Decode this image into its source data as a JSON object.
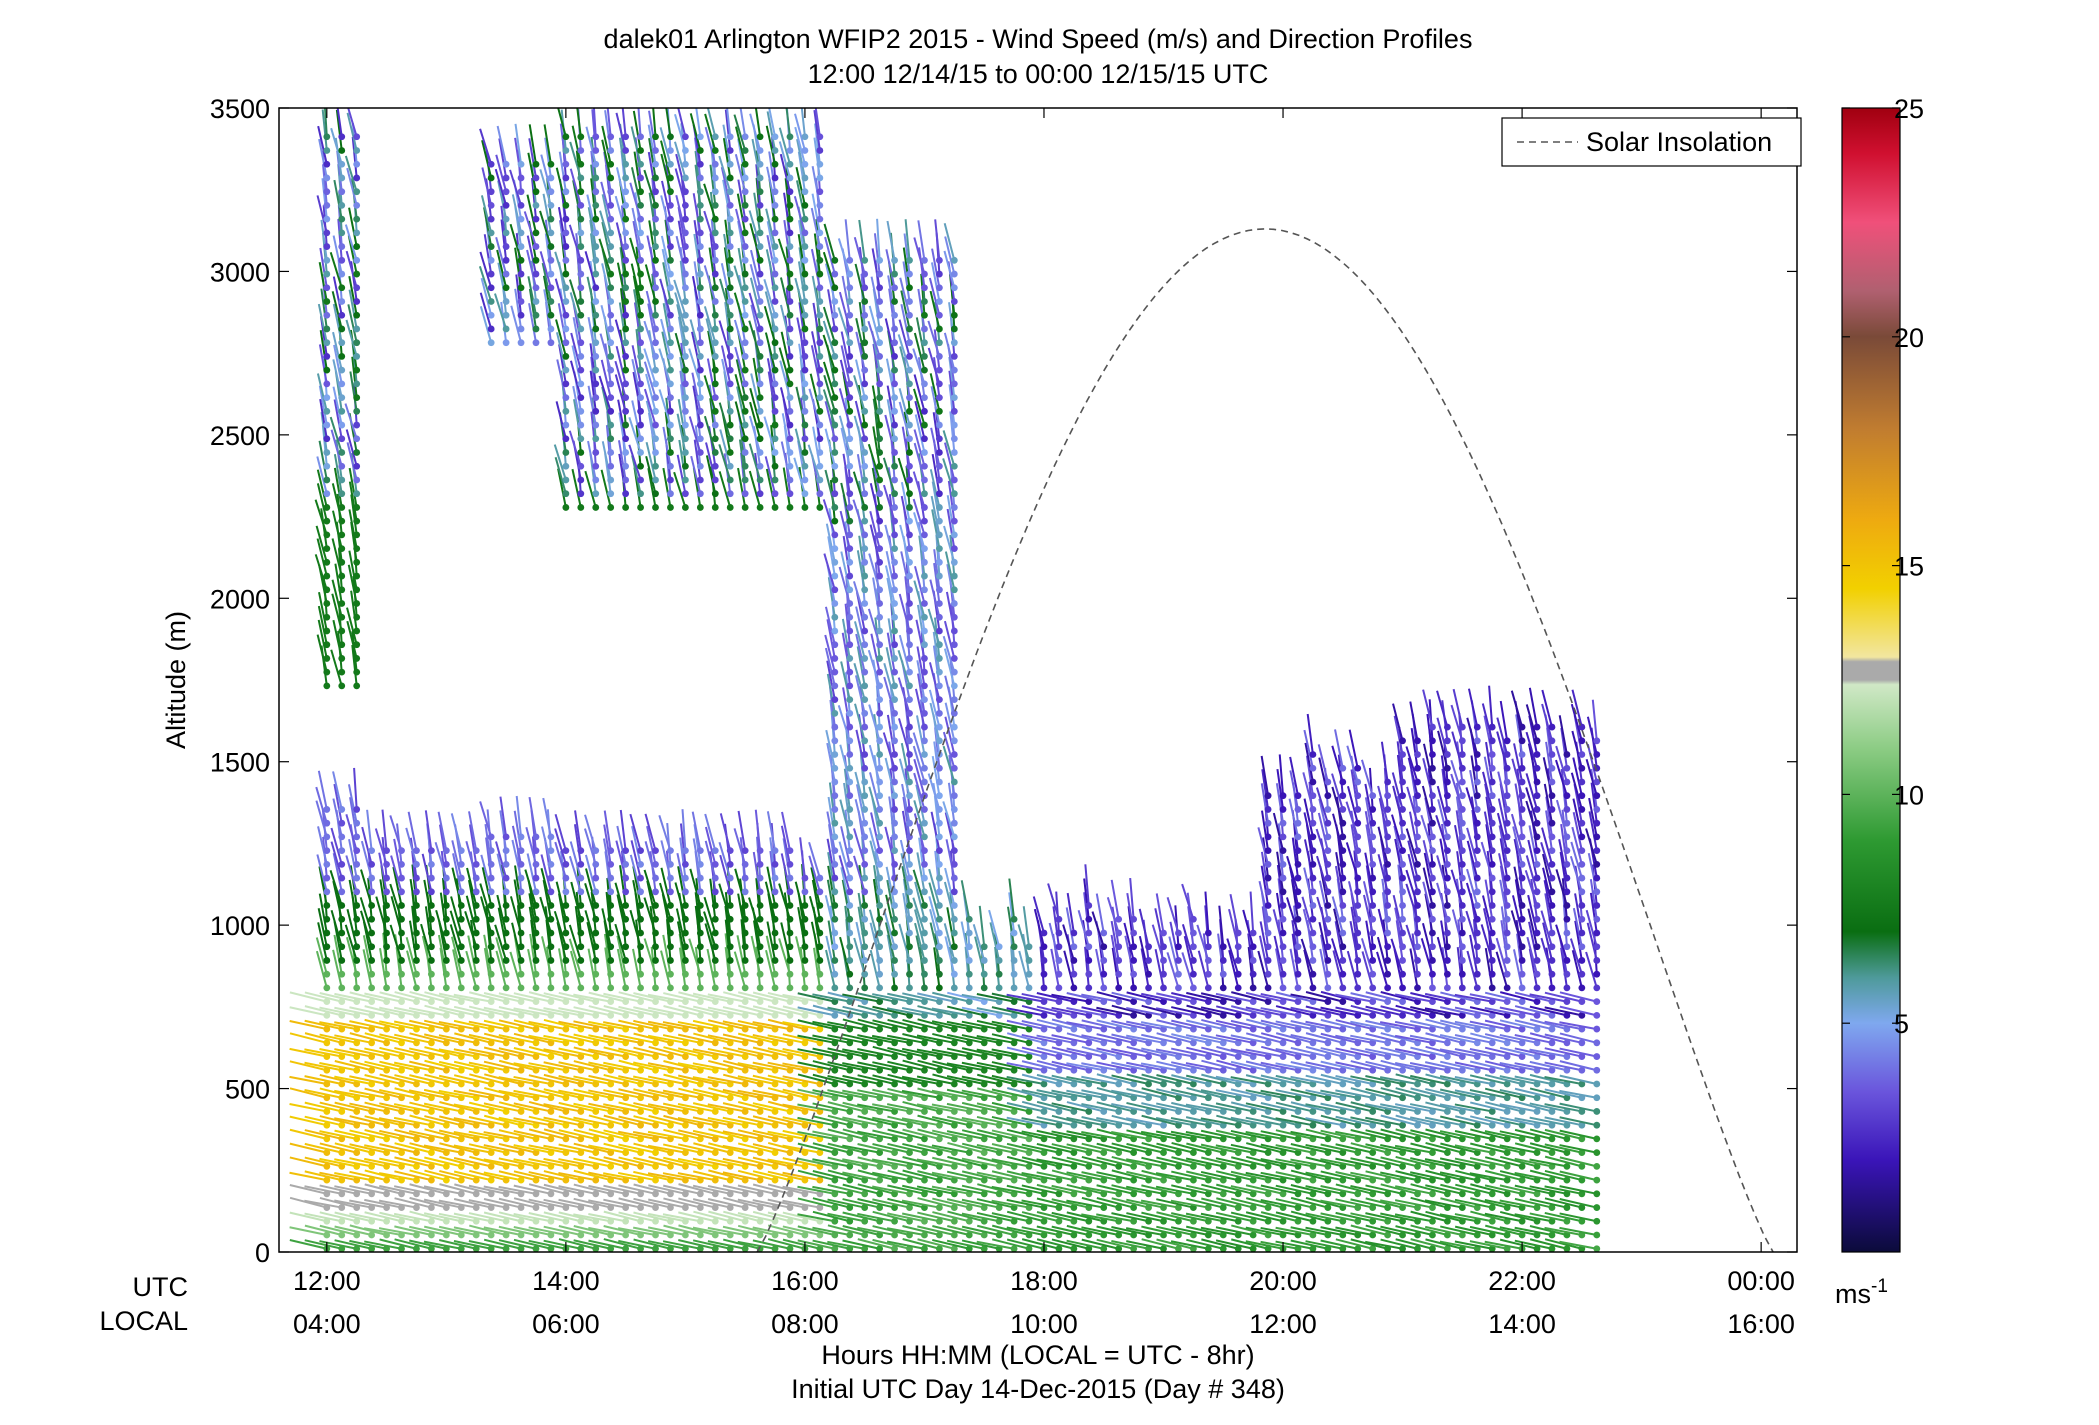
{
  "chart_data": {
    "type": "wind-barb-profile",
    "title": "dalek01 Arlington WFIP2 2015 - Wind Speed (m/s) and Direction Profiles",
    "subtitle": "12:00 12/14/15 to 00:00 12/15/15  UTC",
    "ylabel": "Altitude (m)",
    "xlabel": "Hours HH:MM  (LOCAL = UTC - 8hr)",
    "xlabel2": "Initial UTC Day 14-Dec-2015 (Day # 348)",
    "row_label_utc": "UTC",
    "row_label_local": "LOCAL",
    "x_unit": "hours UTC",
    "xlim": [
      11.6,
      24.3
    ],
    "ylim": [
      0,
      3500
    ],
    "y_ticks": [
      0,
      500,
      1000,
      1500,
      2000,
      2500,
      3000,
      3500
    ],
    "x_ticks_utc": [
      {
        "x": 12,
        "label": "12:00"
      },
      {
        "x": 14,
        "label": "14:00"
      },
      {
        "x": 16,
        "label": "16:00"
      },
      {
        "x": 18,
        "label": "18:00"
      },
      {
        "x": 20,
        "label": "20:00"
      },
      {
        "x": 22,
        "label": "22:00"
      },
      {
        "x": 24,
        "label": "00:00"
      }
    ],
    "x_ticks_local": [
      {
        "x": 12,
        "label": "04:00"
      },
      {
        "x": 14,
        "label": "06:00"
      },
      {
        "x": 16,
        "label": "08:00"
      },
      {
        "x": 18,
        "label": "10:00"
      },
      {
        "x": 20,
        "label": "12:00"
      },
      {
        "x": 22,
        "label": "14:00"
      },
      {
        "x": 24,
        "label": "16:00"
      }
    ],
    "colorbar": {
      "min": 0,
      "max": 25,
      "ticks": [
        5,
        10,
        15,
        20,
        25
      ],
      "unit_label": "ms",
      "unit_sup": "-1",
      "stops": [
        {
          "v": 0,
          "color": "#0b0b3a"
        },
        {
          "v": 2,
          "color": "#3a14b8"
        },
        {
          "v": 3.5,
          "color": "#6a55dc"
        },
        {
          "v": 5,
          "color": "#7fa8ef"
        },
        {
          "v": 6,
          "color": "#4e9a9a"
        },
        {
          "v": 7,
          "color": "#0a6e12"
        },
        {
          "v": 9,
          "color": "#2e9a32"
        },
        {
          "v": 11,
          "color": "#8ccc84"
        },
        {
          "v": 12.4,
          "color": "#d0e8c6"
        },
        {
          "v": 12.5,
          "color": "#aaaaaa"
        },
        {
          "v": 12.9,
          "color": "#aaaaaa"
        },
        {
          "v": 13,
          "color": "#f2e6a0"
        },
        {
          "v": 14.5,
          "color": "#f2d000"
        },
        {
          "v": 16,
          "color": "#eeaa10"
        },
        {
          "v": 18,
          "color": "#c07c30"
        },
        {
          "v": 20,
          "color": "#7a4a38"
        },
        {
          "v": 21,
          "color": "#b06070"
        },
        {
          "v": 22.5,
          "color": "#f0507a"
        },
        {
          "v": 24,
          "color": "#d01030"
        },
        {
          "v": 25,
          "color": "#a00010"
        }
      ]
    },
    "legend": {
      "label": "Solar Insolation",
      "placement": "top-right",
      "style": "dashed"
    },
    "solar_insolation": {
      "sunrise_utc": 15.6,
      "sunset_utc": 24.1,
      "peak_altitude": 3130
    },
    "wind_columns": {
      "start_utc": 12.0,
      "step_hours": 0.125,
      "count": 86,
      "low_layer_top_start": 880,
      "low_layer_top_end": 930,
      "note": "barbs estimated from figure"
    }
  }
}
